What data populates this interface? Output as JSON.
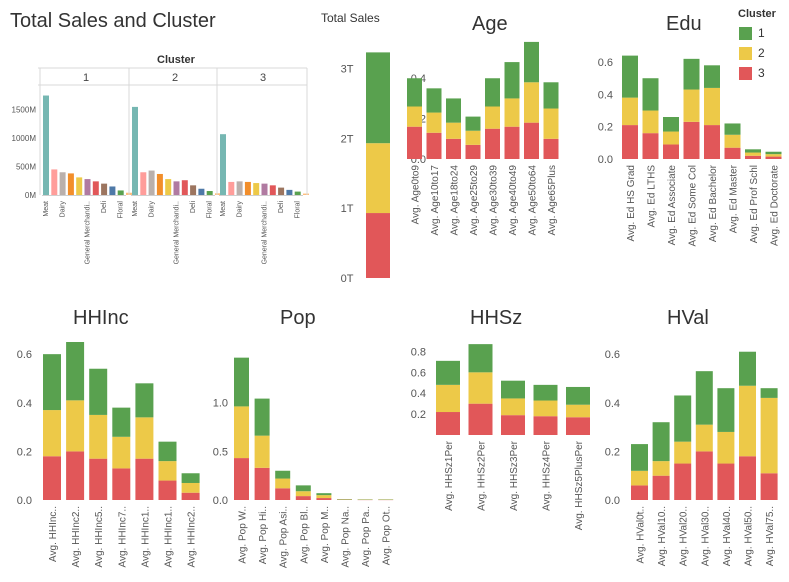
{
  "page_title": "Total Sales and Cluster",
  "total_sales_title": "Total Sales",
  "legend": {
    "title": "Cluster",
    "items": [
      {
        "label": "1",
        "color": "#59a14f"
      },
      {
        "label": "2",
        "color": "#edc948"
      },
      {
        "label": "3",
        "color": "#e15759"
      }
    ]
  },
  "chart_data": [
    {
      "id": "cluster-sales",
      "type": "bar",
      "title": "Total Sales and Cluster",
      "header": "Cluster",
      "panels": [
        "1",
        "2",
        "3"
      ],
      "categories": [
        "Meat",
        "",
        "Dairy",
        "",
        "",
        "General Merchandi..",
        "",
        "Deli",
        "",
        "Floral",
        ""
      ],
      "category_colors": [
        "#76b7b2",
        "#ff9d9a",
        "#bab0ac",
        "#f28e2b",
        "#edc948",
        "#b07aa1",
        "#e15759",
        "#9c755f",
        "#4e79a7",
        "#59a14f",
        "#ffbe7d"
      ],
      "values_millions": [
        [
          1750,
          450,
          400,
          380,
          310,
          280,
          240,
          200,
          150,
          80,
          40
        ],
        [
          1550,
          400,
          430,
          370,
          280,
          240,
          260,
          170,
          110,
          70,
          30
        ],
        [
          1070,
          230,
          240,
          230,
          210,
          200,
          170,
          130,
          90,
          60,
          25
        ]
      ],
      "yticks": [
        "0M",
        "500M",
        "1000M",
        "1500M"
      ],
      "ytick_values": [
        0,
        500,
        1000,
        1500
      ],
      "ylim": [
        0,
        1900
      ]
    },
    {
      "id": "total-sales",
      "type": "bar",
      "stacked": true,
      "title": "Total Sales",
      "series": [
        {
          "name": "3",
          "values": [
            0.93
          ]
        },
        {
          "name": "2",
          "values": [
            1.0
          ]
        },
        {
          "name": "1",
          "values": [
            1.3
          ]
        }
      ],
      "yticks": [
        "0T",
        "1T",
        "2T",
        "3T"
      ],
      "ytick_values": [
        0,
        1,
        2,
        3
      ],
      "ylim": [
        0,
        3.35
      ]
    },
    {
      "id": "age",
      "type": "bar",
      "stacked": true,
      "title": "Age",
      "categories": [
        "Avg. Age0to9",
        "Avg. Age10to17",
        "Avg. Age18to24",
        "Avg. Age25to29",
        "Avg. Age30to39",
        "Avg. Age40to49",
        "Avg. Age50to64",
        "Avg. Age65Plus"
      ],
      "series": [
        {
          "name": "3",
          "values": [
            0.16,
            0.13,
            0.1,
            0.07,
            0.15,
            0.16,
            0.18,
            0.1
          ]
        },
        {
          "name": "2",
          "values": [
            0.1,
            0.1,
            0.08,
            0.07,
            0.11,
            0.14,
            0.2,
            0.15
          ]
        },
        {
          "name": "1",
          "values": [
            0.14,
            0.12,
            0.12,
            0.07,
            0.14,
            0.18,
            0.2,
            0.13
          ]
        }
      ],
      "yticks": [
        "0.0",
        "0.2",
        "0.4"
      ],
      "ytick_values": [
        0,
        0.2,
        0.4
      ],
      "ylim": [
        0,
        0.53
      ]
    },
    {
      "id": "edu",
      "type": "bar",
      "stacked": true,
      "title": "Edu",
      "categories": [
        "Avg. Ed HS Grad",
        "Avg. Ed LTHS",
        "Avg. Ed Associate",
        "Avg. Ed Some Col",
        "Avg. Ed Bachelor",
        "Avg. Ed Master",
        "Avg. Ed Prof Schl",
        "Avg. Ed Doctorate"
      ],
      "series": [
        {
          "name": "3",
          "values": [
            0.21,
            0.16,
            0.09,
            0.23,
            0.21,
            0.07,
            0.02,
            0.015
          ]
        },
        {
          "name": "2",
          "values": [
            0.17,
            0.14,
            0.08,
            0.2,
            0.23,
            0.08,
            0.02,
            0.015
          ]
        },
        {
          "name": "1",
          "values": [
            0.26,
            0.2,
            0.09,
            0.19,
            0.14,
            0.07,
            0.02,
            0.015
          ]
        }
      ],
      "yticks": [
        "0.0",
        "0.2",
        "0.4",
        "0.6"
      ],
      "ytick_values": [
        0,
        0.2,
        0.4,
        0.6
      ],
      "ylim": [
        0,
        0.65
      ]
    },
    {
      "id": "hhinc",
      "type": "bar",
      "stacked": true,
      "title": "HHInc",
      "categories": [
        "Avg. HHInc..",
        "Avg. HHInc2..",
        "Avg. HHInc5..",
        "Avg. HHInc7..",
        "Avg. HHInc1..",
        "Avg. HHInc1..",
        "Avg. HHInc2.."
      ],
      "series": [
        {
          "name": "3",
          "values": [
            0.18,
            0.2,
            0.17,
            0.13,
            0.17,
            0.08,
            0.03
          ]
        },
        {
          "name": "2",
          "values": [
            0.19,
            0.21,
            0.18,
            0.13,
            0.17,
            0.08,
            0.04
          ]
        },
        {
          "name": "1",
          "values": [
            0.23,
            0.24,
            0.19,
            0.12,
            0.14,
            0.08,
            0.04
          ]
        }
      ],
      "yticks": [
        "0.0",
        "0.2",
        "0.4",
        "0.6"
      ],
      "ytick_values": [
        0,
        0.2,
        0.4,
        0.6
      ],
      "ylim": [
        0,
        0.65
      ]
    },
    {
      "id": "pop",
      "type": "bar",
      "stacked": true,
      "title": "Pop",
      "categories": [
        "Avg. Pop W..",
        "Avg. Pop Hi..",
        "Avg. Pop Asi..",
        "Avg. Pop Bl..",
        "Avg. Pop M..",
        "Avg. Pop Na..",
        "Avg. Pop Pa..",
        "Avg. Pop Ot.."
      ],
      "series": [
        {
          "name": "3",
          "values": [
            0.43,
            0.33,
            0.12,
            0.04,
            0.02,
            0.003,
            0.002,
            0.002
          ]
        },
        {
          "name": "2",
          "values": [
            0.53,
            0.33,
            0.1,
            0.05,
            0.03,
            0.003,
            0.002,
            0.002
          ]
        },
        {
          "name": "1",
          "values": [
            0.5,
            0.38,
            0.08,
            0.06,
            0.02,
            0.004,
            0.003,
            0.003
          ]
        }
      ],
      "yticks": [
        "0.0",
        "0.5",
        "1.0"
      ],
      "ytick_values": [
        0,
        0.5,
        1.0
      ],
      "ylim": [
        0,
        1.6
      ]
    },
    {
      "id": "hhsz",
      "type": "bar",
      "stacked": true,
      "title": "HHSz",
      "categories": [
        "Avg. HHSz1Per",
        "Avg. HHSz2Per",
        "Avg. HHSz3Per",
        "Avg. HHSz4Per",
        "Avg. HHSz5PlusPer"
      ],
      "series": [
        {
          "name": "3",
          "values": [
            0.22,
            0.3,
            0.19,
            0.18,
            0.17
          ]
        },
        {
          "name": "2",
          "values": [
            0.26,
            0.3,
            0.16,
            0.15,
            0.12
          ]
        },
        {
          "name": "1",
          "values": [
            0.23,
            0.27,
            0.17,
            0.15,
            0.17
          ]
        }
      ],
      "yticks": [
        "0.2",
        "0.4",
        "0.6",
        "0.8"
      ],
      "ytick_values": [
        0.2,
        0.4,
        0.6,
        0.8
      ],
      "ylim": [
        0,
        0.9
      ]
    },
    {
      "id": "hval",
      "type": "bar",
      "stacked": true,
      "title": "HVal",
      "categories": [
        "Avg. HVal0t..",
        "Avg. HVal10..",
        "Avg. HVal20..",
        "Avg. HVal30..",
        "Avg. HVal40..",
        "Avg. HVal50..",
        "Avg. HVal75.."
      ],
      "series": [
        {
          "name": "3",
          "values": [
            0.06,
            0.1,
            0.15,
            0.2,
            0.15,
            0.18,
            0.11
          ]
        },
        {
          "name": "2",
          "values": [
            0.06,
            0.06,
            0.09,
            0.11,
            0.13,
            0.29,
            0.31
          ]
        },
        {
          "name": "1",
          "values": [
            0.11,
            0.16,
            0.19,
            0.22,
            0.18,
            0.14,
            0.04
          ]
        }
      ],
      "yticks": [
        "0.0",
        "0.2",
        "0.4",
        "0.6"
      ],
      "ytick_values": [
        0,
        0.2,
        0.4,
        0.6
      ],
      "ylim": [
        0,
        0.65
      ]
    }
  ]
}
